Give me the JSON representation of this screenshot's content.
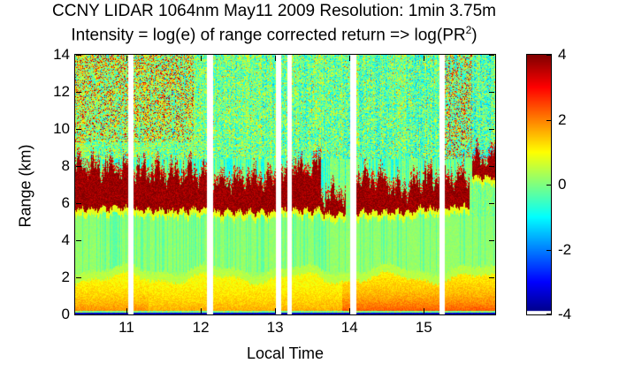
{
  "chart_data": {
    "type": "heatmap",
    "title": "CCNY LIDAR 1064nm May11 2009 Resolution: 1min 3.75m",
    "subtitle_prefix": "Intensity = log(e) of range corrected return => log(PR",
    "subtitle_sup": "2",
    "subtitle_suffix": ")",
    "xlabel": "Local Time",
    "ylabel": "Range (km)",
    "x_range": [
      10.31,
      15.96
    ],
    "x_ticks": [
      11,
      12,
      13,
      14,
      15
    ],
    "y_range": [
      0,
      14
    ],
    "y_ticks": [
      0,
      2,
      4,
      6,
      8,
      10,
      12,
      14
    ],
    "colormap": "jet",
    "gap_color": "#ffffff",
    "background_color": "#ffffff",
    "colorbar": {
      "min": -4,
      "max": 4,
      "ticks": [
        4,
        2,
        0,
        -2,
        -4
      ]
    },
    "data_gaps_hours": [
      [
        11.02,
        11.09
      ],
      [
        12.08,
        12.16
      ],
      [
        13.01,
        13.08
      ],
      [
        13.16,
        13.23
      ],
      [
        14.01,
        14.09
      ],
      [
        15.21,
        15.28
      ]
    ],
    "layers": {
      "ground_line": {
        "top_km": 0.1,
        "intensity": -3.7
      },
      "boundary_layer": {
        "top_km_mean": 2.0,
        "intensity_near_ground": 1.9,
        "intensity_at_top": 0.9,
        "enhanced_after_hour": 13.9
      },
      "mid_clear_air": {
        "from_km": 2.5,
        "to_km": 5.3,
        "intensity": 0.15
      },
      "upper_noise": {
        "from_km": 8.4,
        "intensity_mean": -0.15,
        "noise_amplitude": 1.2,
        "solar_speckle_region": {
          "before_hour": 11.9,
          "above_km": 9.3,
          "speckle_intensity": 2.5
        }
      },
      "cloud_intensity": 3.4,
      "cloud_segments": [
        {
          "t0": 10.31,
          "t1": 11.02,
          "base_km": 5.7,
          "top_km": 7.9
        },
        {
          "t0": 11.09,
          "t1": 12.08,
          "base_km": 5.6,
          "top_km": 7.6
        },
        {
          "t0": 12.16,
          "t1": 13.01,
          "base_km": 5.5,
          "top_km": 7.2
        },
        {
          "t0": 13.08,
          "t1": 13.16,
          "base_km": 5.6,
          "top_km": 7.4
        },
        {
          "t0": 13.23,
          "t1": 13.62,
          "base_km": 5.6,
          "top_km": 7.9
        },
        {
          "t0": 13.62,
          "t1": 13.95,
          "base_km": 5.4,
          "top_km": 6.4
        },
        {
          "t0": 14.09,
          "t1": 14.55,
          "base_km": 5.5,
          "top_km": 7.3
        },
        {
          "t0": 14.55,
          "t1": 14.85,
          "base_km": 5.5,
          "top_km": 6.6
        },
        {
          "t0": 14.85,
          "t1": 15.21,
          "base_km": 5.7,
          "top_km": 7.3
        },
        {
          "t0": 15.28,
          "t1": 15.62,
          "base_km": 5.8,
          "top_km": 7.3
        },
        {
          "t0": 15.65,
          "t1": 15.96,
          "base_km": 7.4,
          "top_km": 8.4
        }
      ]
    }
  }
}
